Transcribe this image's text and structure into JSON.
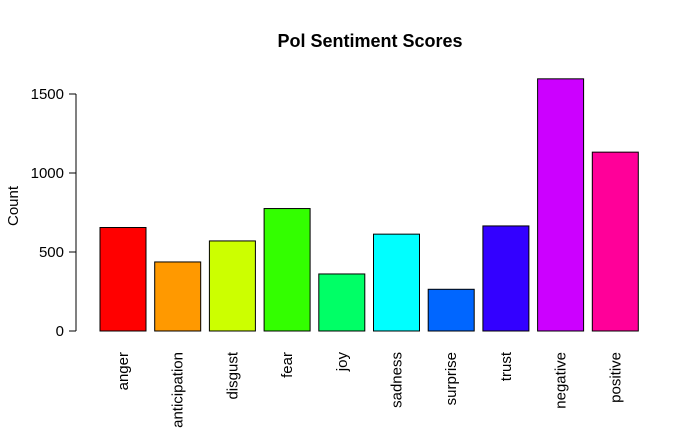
{
  "chart_data": {
    "type": "bar",
    "title": "Pol Sentiment Scores",
    "xlabel": "",
    "ylabel": "Count",
    "categories": [
      "anger",
      "anticipation",
      "disgust",
      "fear",
      "joy",
      "sadness",
      "surprise",
      "trust",
      "negative",
      "positive"
    ],
    "values": [
      655,
      437,
      570,
      775,
      361,
      613,
      264,
      665,
      1596,
      1132
    ],
    "colors": [
      "#FF0000",
      "#FF9900",
      "#CCFF00",
      "#33FF00",
      "#00FF66",
      "#00FFFF",
      "#0066FF",
      "#3300FF",
      "#CC00FF",
      "#FF0099"
    ],
    "ylim": [
      0,
      1650
    ],
    "yticks": [
      0,
      500,
      1000,
      1500
    ],
    "grid": false,
    "legend": "none"
  }
}
